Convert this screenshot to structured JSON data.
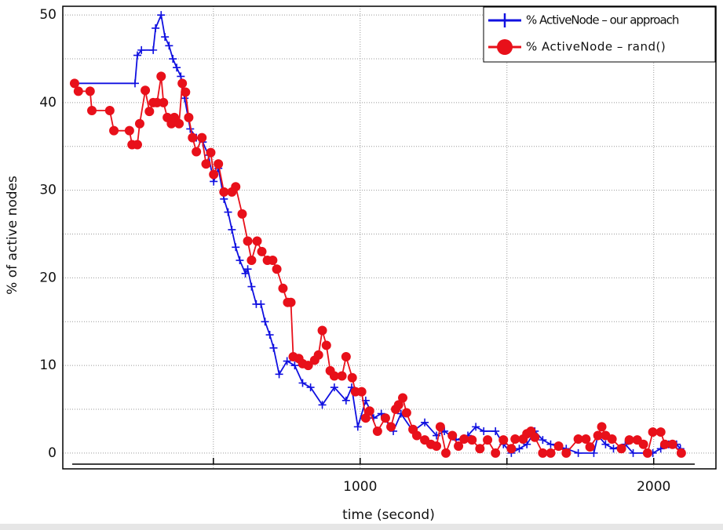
{
  "chart_data": {
    "type": "line",
    "x_label": "time (second)",
    "y_label": "% of active nodes",
    "xlim": [
      -13,
      2212
    ],
    "ylim": [
      -1.8,
      51
    ],
    "xticks": [
      {
        "value": 500,
        "label": null
      },
      1000,
      {
        "value": 1500,
        "label": null
      },
      2000
    ],
    "yticks": [
      0,
      {
        "value": 5,
        "label": null
      },
      10,
      {
        "value": 15,
        "label": null
      },
      20,
      {
        "value": 25,
        "label": null
      },
      30,
      {
        "value": 35,
        "label": null
      },
      40,
      {
        "value": 45,
        "label": null
      },
      50
    ],
    "grid": true,
    "legend": "top-right",
    "series": [
      {
        "name": "% ActiveNode – our approach",
        "color": "#1010e0",
        "marker": "plus",
        "x": [
          27,
          233,
          241,
          255,
          295,
          303,
          322,
          335,
          349,
          362,
          375,
          389,
          402,
          421,
          442,
          464,
          483,
          501,
          517,
          536,
          550,
          563,
          576,
          590,
          609,
          617,
          630,
          646,
          662,
          676,
          692,
          705,
          724,
          751,
          777,
          804,
          831,
          871,
          912,
          952,
          971,
          992,
          1019,
          1046,
          1072,
          1113,
          1139,
          1180,
          1220,
          1260,
          1287,
          1327,
          1367,
          1394,
          1421,
          1461,
          1488,
          1515,
          1542,
          1568,
          1595,
          1622,
          1649,
          1702,
          1743,
          1796,
          1810,
          1836,
          1863,
          1903,
          1930,
          1997,
          2024,
          2051,
          2078,
          2091
        ],
        "values": [
          42.2,
          42.2,
          45.4,
          46,
          46,
          48.5,
          50,
          47.5,
          46.5,
          45,
          44,
          43,
          40.5,
          37,
          36,
          35.5,
          34,
          31,
          32.5,
          29,
          27.5,
          25.5,
          23.5,
          22,
          20.5,
          21,
          19,
          17,
          17,
          15,
          13.5,
          12,
          9,
          10.5,
          10,
          8,
          7.5,
          5.5,
          7.5,
          6,
          7.5,
          3,
          6,
          4,
          4.5,
          2.5,
          4.5,
          2.5,
          3.5,
          2,
          2.5,
          1.5,
          2,
          3,
          2.5,
          2.5,
          1,
          0,
          0.5,
          1,
          2.5,
          1.5,
          1,
          0.5,
          0,
          0,
          2,
          1,
          0.5,
          1,
          0,
          0,
          0.5,
          1,
          1,
          0.5
        ]
      },
      {
        "name": "% ActiveNode – rand()",
        "color": "#e8101a",
        "marker": "circle",
        "x": [
          27,
          40,
          80,
          86,
          147,
          161,
          214,
          223,
          241,
          249,
          268,
          282,
          295,
          308,
          322,
          330,
          343,
          357,
          367,
          383,
          394,
          405,
          416,
          429,
          442,
          461,
          475,
          491,
          501,
          517,
          536,
          563,
          576,
          598,
          617,
          630,
          649,
          665,
          684,
          702,
          716,
          737,
          753,
          764,
          772,
          791,
          804,
          823,
          845,
          858,
          871,
          885,
          898,
          912,
          938,
          952,
          973,
          984,
          1005,
          1019,
          1032,
          1059,
          1086,
          1105,
          1121,
          1131,
          1145,
          1158,
          1180,
          1193,
          1220,
          1241,
          1260,
          1273,
          1292,
          1314,
          1335,
          1354,
          1381,
          1408,
          1434,
          1461,
          1488,
          1515,
          1528,
          1555,
          1568,
          1582,
          1595,
          1622,
          1649,
          1676,
          1702,
          1743,
          1769,
          1783,
          1810,
          1823,
          1836,
          1858,
          1890,
          1917,
          1944,
          1965,
          1979,
          1997,
          2024,
          2038,
          2064,
          2094
        ],
        "values": [
          42.2,
          41.3,
          41.3,
          39.1,
          39.1,
          36.8,
          36.8,
          35.2,
          35.2,
          37.6,
          41.4,
          39,
          40,
          40,
          43,
          40,
          38.3,
          37.6,
          38.3,
          37.6,
          42.2,
          41.2,
          38.3,
          36,
          34.4,
          36,
          33,
          34.3,
          31.8,
          33,
          29.8,
          29.8,
          30.4,
          27.3,
          24.2,
          22,
          24.2,
          23,
          22,
          22,
          21,
          18.8,
          17.2,
          17.2,
          11,
          10.8,
          10.2,
          10,
          10.6,
          11.2,
          14,
          12.3,
          9.4,
          8.8,
          8.8,
          11,
          8.6,
          7,
          7,
          4,
          4.8,
          2.5,
          4,
          3,
          5,
          5.5,
          6.3,
          4.6,
          2.7,
          2,
          1.5,
          1,
          0.8,
          3,
          0,
          2,
          0.8,
          1.6,
          1.5,
          0.5,
          1.5,
          0,
          1.5,
          0.5,
          1.6,
          1.6,
          2.2,
          2.5,
          1.8,
          0,
          0,
          0.8,
          0,
          1.6,
          1.6,
          0.7,
          2,
          3,
          2,
          1.6,
          0.5,
          1.5,
          1.5,
          1,
          0,
          2.4,
          2.4,
          1,
          1,
          0
        ]
      }
    ]
  }
}
